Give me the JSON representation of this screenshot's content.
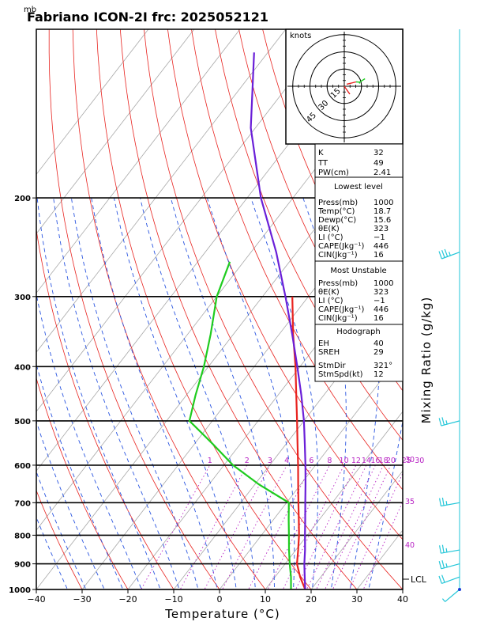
{
  "title": "Fabriano ICON-2I frc: 2025052121",
  "unit_corner": "mb",
  "chart_data": {
    "type": "line",
    "diagram": "skew-T log-p",
    "xlabel": "Temperature (°C)",
    "ylabel_right": "Mixing Ratio (g/kg)",
    "xlim": [
      -40,
      40
    ],
    "ylim": [
      1000,
      100
    ],
    "x_ticks": [
      -40,
      -30,
      -20,
      -10,
      0,
      10,
      20,
      30,
      40
    ],
    "y_ticks": [
      1000,
      900,
      800,
      700,
      600,
      500,
      400,
      300,
      200
    ],
    "y_tick_labels": [
      "1000",
      "900",
      "800",
      "700",
      "600",
      "500",
      "400",
      "300",
      "200"
    ],
    "mixing_ratio_labels": [
      "1",
      "2",
      "3",
      "4",
      "6",
      "8",
      "10",
      "12",
      "14",
      "16",
      "18",
      "20",
      "25",
      "30"
    ],
    "mixing_ratio_values": [
      1,
      2,
      3,
      4,
      6,
      8,
      10,
      12,
      14,
      16,
      18,
      20,
      25,
      30
    ],
    "adiabat_labels": [
      "30",
      "35",
      "40"
    ],
    "series": [
      {
        "name": "",
        "color": "#e8231f",
        "points": [
          [
            1000,
            18.7
          ],
          [
            950,
            15.5
          ],
          [
            900,
            12.6
          ],
          [
            850,
            10.5
          ],
          [
            800,
            8.2
          ],
          [
            750,
            5.5
          ],
          [
            700,
            2.6
          ],
          [
            650,
            -0.5
          ],
          [
            600,
            -3.8
          ],
          [
            550,
            -7.5
          ],
          [
            500,
            -11.5
          ],
          [
            450,
            -16
          ],
          [
            400,
            -21
          ],
          [
            350,
            -27
          ],
          [
            300,
            -33.5
          ]
        ]
      },
      {
        "name": "",
        "color": "#1fcc1f",
        "points": [
          [
            1000,
            15.6
          ],
          [
            950,
            13.5
          ],
          [
            900,
            11
          ],
          [
            850,
            8.5
          ],
          [
            800,
            6
          ],
          [
            750,
            3.3
          ],
          [
            700,
            0.5
          ],
          [
            650,
            -9
          ],
          [
            600,
            -18
          ],
          [
            550,
            -26
          ],
          [
            500,
            -35
          ],
          [
            450,
            -38
          ],
          [
            400,
            -41
          ],
          [
            350,
            -45
          ],
          [
            300,
            -50
          ],
          [
            260,
            -53
          ]
        ]
      },
      {
        "name": "",
        "color": "#6a1fd8",
        "points": [
          [
            1000,
            18.7
          ],
          [
            950,
            16.5
          ],
          [
            900,
            14.2
          ],
          [
            850,
            12
          ],
          [
            800,
            9.5
          ],
          [
            750,
            6.9
          ],
          [
            700,
            4.1
          ],
          [
            650,
            1.1
          ],
          [
            600,
            -2.2
          ],
          [
            550,
            -5.9
          ],
          [
            500,
            -10
          ],
          [
            450,
            -14.9
          ],
          [
            400,
            -20.6
          ],
          [
            350,
            -27.2
          ],
          [
            300,
            -35
          ],
          [
            250,
            -44.5
          ],
          [
            200,
            -57
          ],
          [
            150,
            -71
          ],
          [
            110,
            -83
          ]
        ]
      }
    ],
    "lcl_label": "LCL",
    "lcl_pressure": 990,
    "hodograph": {
      "units_label": "knots",
      "ring_labels": [
        "15",
        "30",
        "45"
      ],
      "ring_values": [
        15,
        30,
        45
      ]
    },
    "wind_barbs": [
      {
        "p": 1000,
        "dir": 230,
        "spd": 5
      },
      {
        "p": 950,
        "dir": 250,
        "spd": 20
      },
      {
        "p": 900,
        "dir": 255,
        "spd": 25
      },
      {
        "p": 850,
        "dir": 260,
        "spd": 25
      },
      {
        "p": 700,
        "dir": 260,
        "spd": 25
      },
      {
        "p": 500,
        "dir": 255,
        "spd": 25
      },
      {
        "p": 250,
        "dir": 250,
        "spd": 35
      }
    ]
  },
  "indices": {
    "k_label": "K",
    "k_value": "32",
    "tt_label": "TT",
    "tt_value": "49",
    "pw_label": "PW(cm)",
    "pw_value": "2.41",
    "lowest": {
      "header": "Lowest level",
      "rows": [
        {
          "label": "Press(mb)",
          "value": "1000"
        },
        {
          "label": "Temp(°C)",
          "value": "18.7"
        },
        {
          "label": "Dewp(°C)",
          "value": "15.6"
        },
        {
          "label": "θE(K)",
          "value": "323"
        },
        {
          "label": "LI (°C)",
          "value": "−1"
        },
        {
          "label": "CAPE(Jkg⁻¹)",
          "value": "446"
        },
        {
          "label": "CIN(Jkg⁻¹)",
          "value": "16"
        }
      ]
    },
    "unstable": {
      "header": "Most Unstable",
      "rows": [
        {
          "label": "Press(mb)",
          "value": "1000"
        },
        {
          "label": "θE(K)",
          "value": "323"
        },
        {
          "label": "LI (°C)",
          "value": "−1"
        },
        {
          "label": "CAPE(Jkg⁻¹)",
          "value": "446"
        },
        {
          "label": "CIN(Jkg⁻¹)",
          "value": "16"
        }
      ]
    },
    "hodo": {
      "header": "Hodograph",
      "rows": [
        {
          "label": "EH",
          "value": "40"
        },
        {
          "label": "SREH",
          "value": "29"
        }
      ]
    },
    "storm": {
      "rows": [
        {
          "label": "StmDir",
          "value": "321°"
        },
        {
          "label": "StmSpd(kt)",
          "value": "12"
        }
      ]
    }
  }
}
